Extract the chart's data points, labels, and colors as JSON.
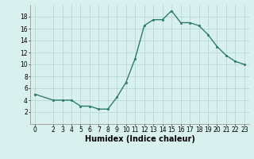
{
  "x": [
    0,
    2,
    3,
    4,
    5,
    6,
    7,
    8,
    9,
    10,
    11,
    12,
    13,
    14,
    15,
    16,
    17,
    18,
    19,
    20,
    21,
    22,
    23
  ],
  "y": [
    5.0,
    4.0,
    4.0,
    4.0,
    3.0,
    3.0,
    2.5,
    2.5,
    4.5,
    7.0,
    11.0,
    16.5,
    17.5,
    17.5,
    19.0,
    17.0,
    17.0,
    16.5,
    15.0,
    13.0,
    11.5,
    10.5,
    10.0
  ],
  "line_color": "#2d7d6e",
  "marker": "s",
  "marker_size": 2.0,
  "bg_color": "#d8f0ee",
  "grid_color": "#b8d8d4",
  "xlabel": "Humidex (Indice chaleur)",
  "ylabel": "",
  "xlim": [
    -0.5,
    23.5
  ],
  "ylim": [
    0,
    20
  ],
  "yticks": [
    2,
    4,
    6,
    8,
    10,
    12,
    14,
    16,
    18
  ],
  "xticks": [
    0,
    2,
    3,
    4,
    5,
    6,
    7,
    8,
    9,
    10,
    11,
    12,
    13,
    14,
    15,
    16,
    17,
    18,
    19,
    20,
    21,
    22,
    23
  ],
  "tick_fontsize": 5.5,
  "xlabel_fontsize": 7.0,
  "line_width": 1.0
}
